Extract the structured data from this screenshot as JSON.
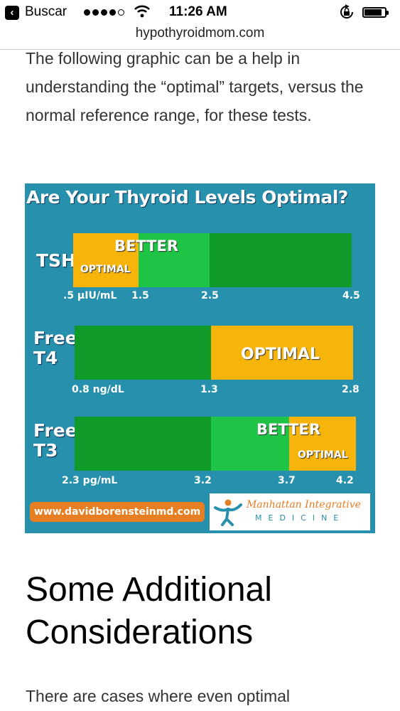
{
  "status_bar": {
    "back_label": "Buscar",
    "time": "11:26 AM",
    "signal_dots": 5,
    "signal_filled": 4
  },
  "browser": {
    "url": "hypothyroidmom.com"
  },
  "article": {
    "intro": "The following graphic can be a help in understanding the “optimal” targets, versus the normal reference range, for these tests.",
    "section_heading": "Some Additional Considerations",
    "paragraph": "There are cases where even optimal"
  },
  "graphic": {
    "title": "Are Your Thyroid Levels Optimal?",
    "tsh": {
      "label": "TSH",
      "better_label": "BETTER",
      "optimal_label": "OPTIMAL",
      "ticks": [
        ".5 µIU/mL",
        "1.5",
        "2.5",
        "4.5"
      ]
    },
    "t4": {
      "label_line1": "Free",
      "label_line2": "T4",
      "optimal_label": "OPTIMAL",
      "ticks": [
        "0.8 ng/dL",
        "1.3",
        "2.8"
      ]
    },
    "t3": {
      "label_line1": "Free",
      "label_line2": "T3",
      "better_label": "BETTER",
      "optimal_label": "OPTIMAL",
      "ticks": [
        "2.3 pg/mL",
        "3.2",
        "3.7",
        "4.2"
      ]
    },
    "website": "www.davidborensteinmd.com",
    "logo_name": "Manhattan Integrative",
    "logo_sub": "MEDICINE",
    "colors": {
      "background": "#2690ad",
      "dark_green": "#0f9a2a",
      "light_green": "#1ec445",
      "orange": "#f7b40a",
      "site_orange": "#e67e22"
    }
  }
}
